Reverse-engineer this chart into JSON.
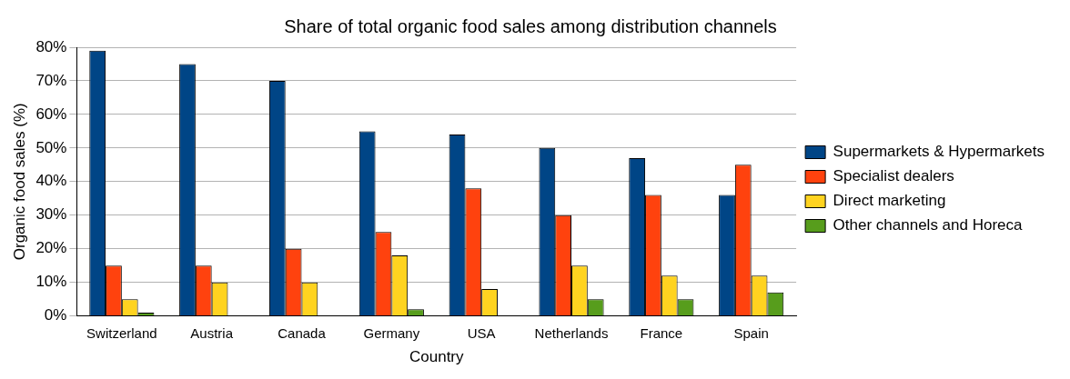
{
  "chart_data": {
    "type": "bar",
    "title": "Share of total organic food sales among distribution channels",
    "xlabel": "Country",
    "ylabel": "Organic food sales (%)",
    "categories": [
      "Switzerland",
      "Austria",
      "Canada",
      "Germany",
      "USA",
      "Netherlands",
      "France",
      "Spain"
    ],
    "series": [
      {
        "name": "Supermarkets & Hypermarkets",
        "color": "#004586",
        "values": [
          79,
          75,
          70,
          55,
          54,
          50,
          47,
          36
        ]
      },
      {
        "name": "Specialist dealers",
        "color": "#ff420e",
        "values": [
          15,
          15,
          20,
          25,
          38,
          30,
          36,
          45
        ]
      },
      {
        "name": "Direct marketing",
        "color": "#ffd320",
        "values": [
          5,
          10,
          10,
          18,
          8,
          15,
          12,
          12
        ]
      },
      {
        "name": "Other channels and Horeca",
        "color": "#579d1c",
        "values": [
          1,
          null,
          null,
          2,
          null,
          5,
          5,
          7
        ]
      }
    ],
    "ylim": [
      0,
      80
    ],
    "yticks": [
      {
        "value": 0,
        "label": "0%"
      },
      {
        "value": 10,
        "label": "10%"
      },
      {
        "value": 20,
        "label": "20%"
      },
      {
        "value": 30,
        "label": "30%"
      },
      {
        "value": 40,
        "label": "40%"
      },
      {
        "value": 50,
        "label": "50%"
      },
      {
        "value": 60,
        "label": "60%"
      },
      {
        "value": 70,
        "label": "70%"
      },
      {
        "value": 80,
        "label": "80%"
      }
    ],
    "grid": "y",
    "legend": "right"
  }
}
